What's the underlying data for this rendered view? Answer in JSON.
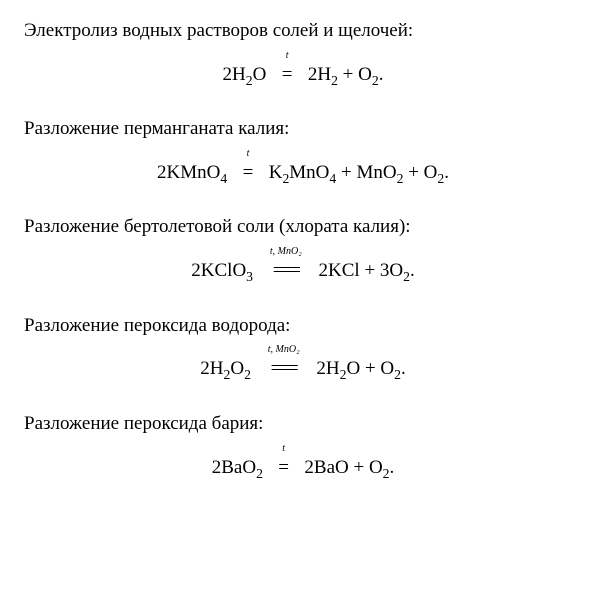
{
  "page": {
    "background_color": "#ffffff",
    "text_color": "#000000",
    "font_family": "Times New Roman",
    "heading_fontsize_pt": 14,
    "equation_fontsize_pt": 14,
    "condition_fontsize_pt": 8
  },
  "sections": [
    {
      "heading": "Электролиз водных растворов солей и щелочей:",
      "equation": {
        "lhs_html": "2H<sub class='sub'>2</sub>O",
        "condition": "t",
        "long_arrow": false,
        "rhs_html": "2H<sub class='sub'>2</sub> + O<sub class='osub'>2</sub>."
      }
    },
    {
      "heading": "Разложение перманганата калия:",
      "equation": {
        "lhs_html": "2KMnO<sub class='sub'>4</sub>",
        "condition": "t",
        "long_arrow": false,
        "rhs_html": "K<sub class='sub'>2</sub>MnO<sub class='sub'>4</sub> + MnO<sub class='sub'>2</sub> + O<sub class='osub'>2</sub>."
      }
    },
    {
      "heading": "Разложение бертолетовой соли (хлората калия):",
      "equation": {
        "lhs_html": "2KClO<sub class='sub'>3</sub>",
        "condition": "t, MnO₂",
        "long_arrow": true,
        "rhs_html": " 2KCl + 3O<sub class='osub'>2</sub>."
      }
    },
    {
      "heading": "Разложение пероксида водорода:",
      "equation": {
        "lhs_html": "2H<sub class='sub'>2</sub>O<sub class='sub'>2</sub>",
        "condition": "t, MnO₂",
        "long_arrow": true,
        "rhs_html": " 2H<sub class='sub'>2</sub>O + O<sub class='osub'>2</sub>."
      }
    },
    {
      "heading": "Разложение пероксида бария:",
      "equation": {
        "lhs_html": "2BaO<sub class='sub'>2</sub>",
        "condition": "t",
        "long_arrow": false,
        "rhs_html": "2BaO + O<sub class='osub'>2</sub>."
      }
    }
  ]
}
